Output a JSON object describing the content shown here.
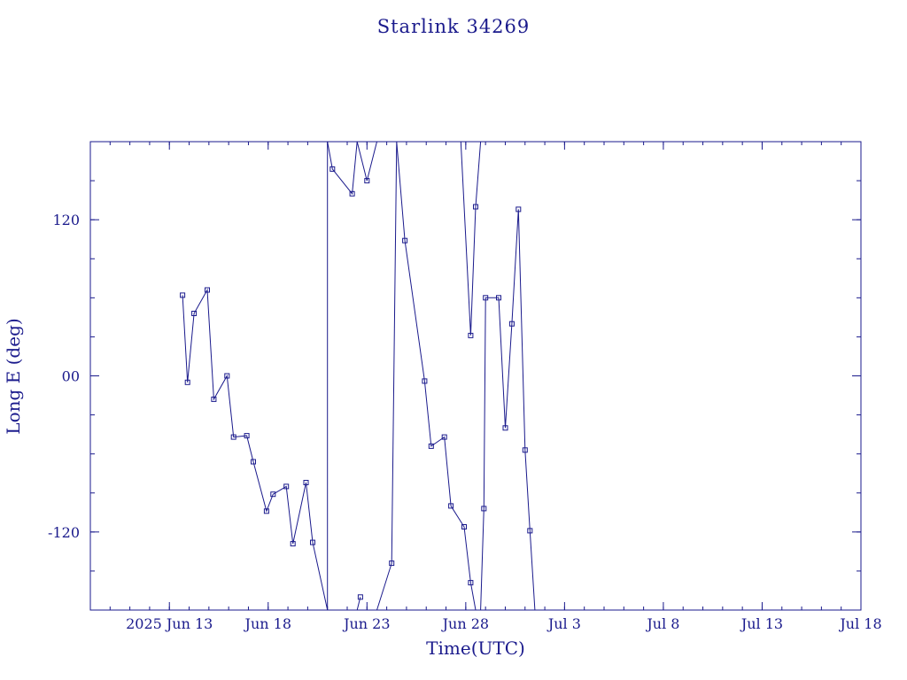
{
  "chart_data": {
    "type": "line",
    "title": "Starlink 34269",
    "xlabel": "Time(UTC)",
    "ylabel": "Long E (deg)",
    "xlim": [
      "2025-06-09",
      "2025-07-18"
    ],
    "ylim": [
      -180,
      180
    ],
    "x_ticks": [
      {
        "date": "2025-06-13",
        "label": "2025 Jun 13"
      },
      {
        "date": "2025-06-18",
        "label": "Jun 18"
      },
      {
        "date": "2025-06-23",
        "label": "Jun 23"
      },
      {
        "date": "2025-06-28",
        "label": "Jun 28"
      },
      {
        "date": "2025-07-03",
        "label": "Jul  3"
      },
      {
        "date": "2025-07-08",
        "label": "Jul  8"
      },
      {
        "date": "2025-07-13",
        "label": "Jul 13"
      },
      {
        "date": "2025-07-18",
        "label": "Jul 18"
      }
    ],
    "y_ticks": [
      {
        "value": 120,
        "label": "120"
      },
      {
        "value": 0,
        "label": "00"
      },
      {
        "value": -120,
        "label": "-120"
      }
    ],
    "grid": false,
    "color": "#1a1a8c",
    "series": [
      {
        "points": [
          {
            "x": "2025-06-13 16:00",
            "y": 62
          },
          {
            "x": "2025-06-13 22:00",
            "y": -5
          },
          {
            "x": "2025-06-14 06:00",
            "y": 48
          },
          {
            "x": "2025-06-14 22:00",
            "y": 66
          },
          {
            "x": "2025-06-15 06:00",
            "y": -18
          },
          {
            "x": "2025-06-15 22:00",
            "y": 0
          },
          {
            "x": "2025-06-16 06:00",
            "y": -47
          },
          {
            "x": "2025-06-16 22:00",
            "y": -46
          },
          {
            "x": "2025-06-17 06:00",
            "y": -66
          },
          {
            "x": "2025-06-17 22:00",
            "y": -104
          },
          {
            "x": "2025-06-18 06:00",
            "y": -91
          },
          {
            "x": "2025-06-18 22:00",
            "y": -85
          },
          {
            "x": "2025-06-19 06:00",
            "y": -129
          },
          {
            "x": "2025-06-19 22:00",
            "y": -82
          },
          {
            "x": "2025-06-20 06:00",
            "y": -128
          },
          {
            "x": "2025-06-21 00:00",
            "y": -180
          },
          {
            "x": "2025-06-21 00:00",
            "y": 180
          },
          {
            "x": "2025-06-21 06:00",
            "y": 159
          },
          {
            "x": "2025-06-22 06:00",
            "y": 140
          },
          {
            "x": "2025-06-22 12:00",
            "y": 180
          },
          {
            "x": "2025-06-23 00:00",
            "y": 150
          },
          {
            "x": "2025-06-23 12:00",
            "y": 180
          }
        ]
      },
      {
        "points": [
          {
            "x": "2025-06-22 12:00",
            "y": -180
          },
          {
            "x": "2025-06-22 16:00",
            "y": -170
          }
        ]
      },
      {
        "points": [
          {
            "x": "2025-06-23 12:00",
            "y": -180
          },
          {
            "x": "2025-06-24 06:00",
            "y": -144
          },
          {
            "x": "2025-06-24 12:00",
            "y": 180
          },
          {
            "x": "2025-06-24 22:00",
            "y": 104
          },
          {
            "x": "2025-06-25 22:00",
            "y": -4
          },
          {
            "x": "2025-06-26 06:00",
            "y": -54
          },
          {
            "x": "2025-06-26 22:00",
            "y": -47
          },
          {
            "x": "2025-06-27 06:00",
            "y": -100
          },
          {
            "x": "2025-06-27 22:00",
            "y": -116
          },
          {
            "x": "2025-06-28 06:00",
            "y": -159
          },
          {
            "x": "2025-06-28 12:00",
            "y": -180
          }
        ]
      },
      {
        "points": [
          {
            "x": "2025-06-27 18:00",
            "y": 180
          },
          {
            "x": "2025-06-28 06:00",
            "y": 31
          },
          {
            "x": "2025-06-28 12:00",
            "y": 130
          },
          {
            "x": "2025-06-28 18:00",
            "y": 180
          }
        ]
      },
      {
        "points": [
          {
            "x": "2025-06-28 18:00",
            "y": -180
          },
          {
            "x": "2025-06-28 22:00",
            "y": -102
          },
          {
            "x": "2025-06-29 00:00",
            "y": 60
          },
          {
            "x": "2025-06-29 16:00",
            "y": 60
          },
          {
            "x": "2025-06-30 00:00",
            "y": -40
          },
          {
            "x": "2025-06-30 08:00",
            "y": 40
          },
          {
            "x": "2025-06-30 16:00",
            "y": 128
          },
          {
            "x": "2025-07-01 00:00",
            "y": -57
          },
          {
            "x": "2025-07-01 06:00",
            "y": -119
          },
          {
            "x": "2025-07-01 12:00",
            "y": -180
          }
        ]
      }
    ]
  }
}
